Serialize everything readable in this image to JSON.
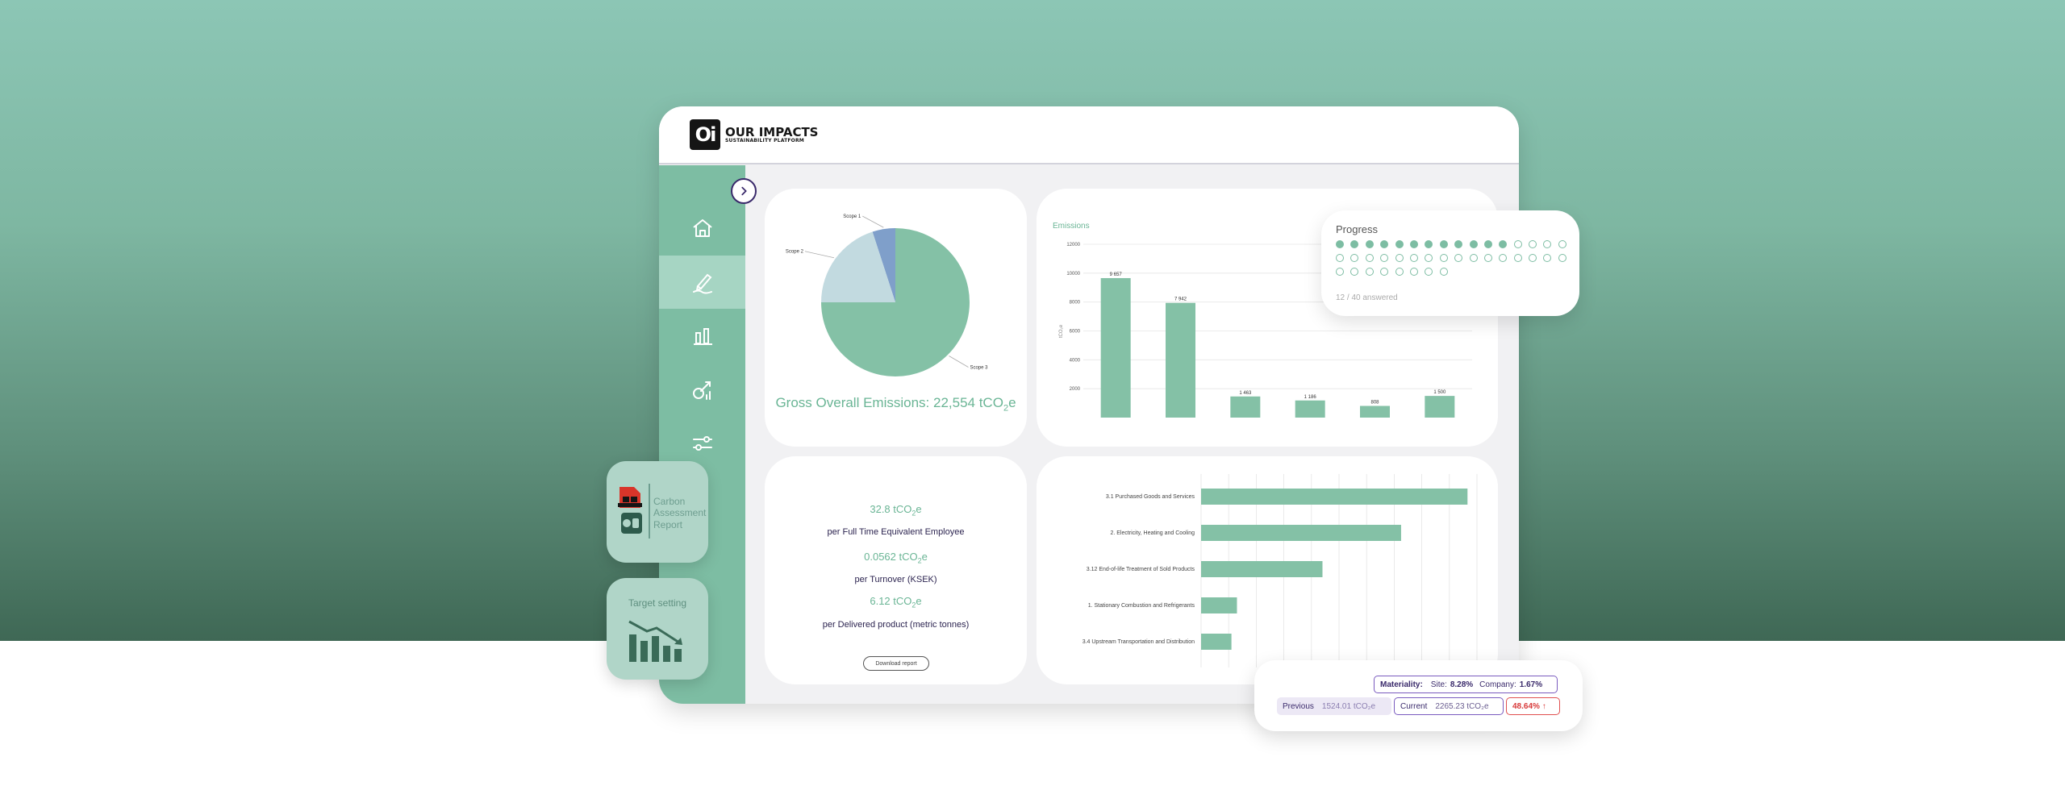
{
  "brand": {
    "logo_mark": "Oi",
    "title": "OUR IMPACTS",
    "subtitle": "SUSTAINABILITY PLATFORM"
  },
  "sidebar": {
    "items": [
      {
        "icon": "home-icon",
        "active": false
      },
      {
        "icon": "survey-pen-icon",
        "active": true
      },
      {
        "icon": "bar-chart-icon",
        "active": false
      },
      {
        "icon": "target-chart-icon",
        "active": false
      },
      {
        "icon": "settings-slider-icon",
        "active": false
      }
    ],
    "toggle_icon": "chevron-right-icon"
  },
  "pie_panel": {
    "title_prefix": "Gross Overall Emissions: 22,554 tCO",
    "title_sub": "2",
    "title_suffix": "e"
  },
  "chart_data": [
    {
      "type": "pie",
      "title": "",
      "slices": [
        {
          "label": "Scope 1",
          "value": 5
        },
        {
          "label": "Scope 2",
          "value": 20
        },
        {
          "label": "Scope 3",
          "value": 75
        }
      ],
      "colors": [
        "#7f9fca",
        "#c2dae0",
        "#84c1a6"
      ]
    },
    {
      "type": "bar",
      "title": "Emissions",
      "ylabel": "tCO₂e",
      "ylim": [
        0,
        12000
      ],
      "yticks": [
        2000,
        4000,
        6000,
        8000,
        10000,
        12000
      ],
      "categories": [
        "",
        "",
        "",
        "",
        "",
        ""
      ],
      "values": [
        9657,
        7942,
        1463,
        1186,
        808,
        1500
      ],
      "data_labels": [
        "9 657",
        "7 942",
        "1 463",
        "1 186",
        "808",
        "1 500"
      ],
      "grid": true
    },
    {
      "type": "bar",
      "orientation": "horizontal",
      "categories": [
        "3.1 Purchased Goods and Services",
        "2. Electricity, Heating and Cooling",
        "3.12 End-of-life Treatment of Sold Products",
        "1. Stationary Combustion and Refrigerants",
        "3.4 Upstream Transportation and Distribution"
      ],
      "values": [
        9657,
        7250,
        4400,
        1300,
        1100
      ],
      "xlim": [
        0,
        10000
      ],
      "grid": true
    }
  ],
  "intensity": {
    "items": [
      {
        "value": "32.8 tCO",
        "sub": "2",
        "suffix": "e",
        "label": "per Full Time Equivalent Employee"
      },
      {
        "value": "0.0562 tCO",
        "sub": "2",
        "suffix": "e",
        "label": "per Turnover (KSEK)"
      },
      {
        "value": "6.12 tCO",
        "sub": "2",
        "suffix": "e",
        "label": "per Delivered product (metric tonnes)"
      }
    ],
    "download_label": "Download report"
  },
  "progress": {
    "title": "Progress",
    "answered": 12,
    "total": 40,
    "count_label": "12 / 40 answered"
  },
  "materiality": {
    "label": "Materiality:",
    "site_label": "Site:",
    "site_value": "8.28%",
    "company_label": "Company:",
    "company_value": "1.67%",
    "previous_label": "Previous",
    "previous_value": "1524.01 tCO₂e",
    "current_label": "Current",
    "current_value": "2265.23 tCO₂e",
    "change": "48.64% ↑"
  },
  "tiles": {
    "car_lines": [
      "Carbon",
      "Assessment",
      "Report"
    ],
    "target_title": "Target setting"
  },
  "colors": {
    "accent": "#7dbda3",
    "sidebar_active": "#a6d5c3",
    "text_dark": "#2c2450",
    "increase": "#d83a3a"
  }
}
